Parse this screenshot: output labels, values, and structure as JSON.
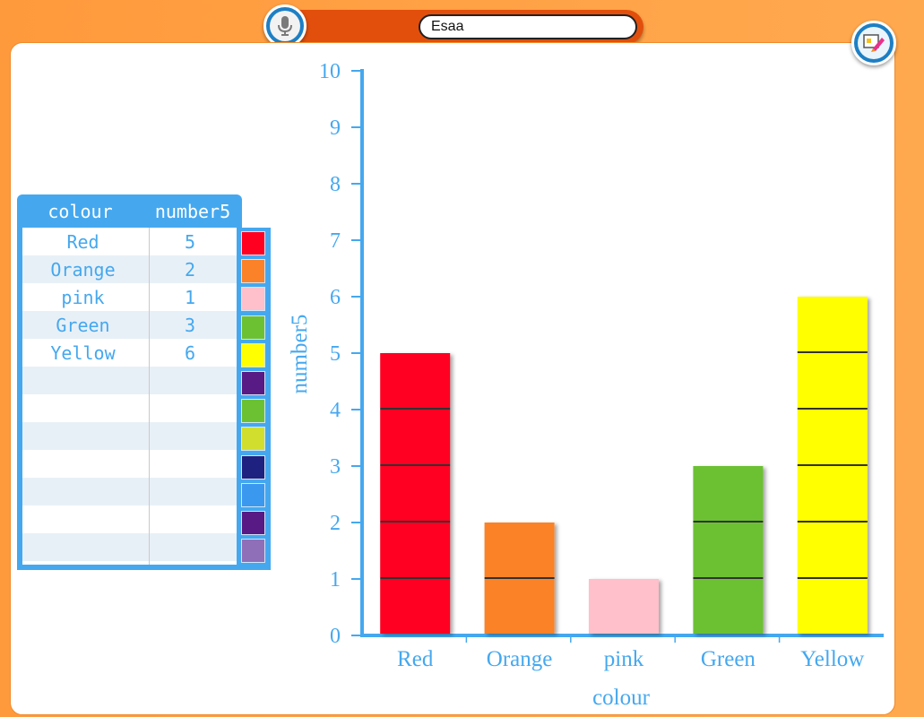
{
  "toolbar": {
    "title_value": "Esaa",
    "mic_icon": "microphone-icon",
    "app_icon": "paint-app-icon"
  },
  "table": {
    "headers": [
      "colour",
      "number5"
    ],
    "rows": [
      {
        "colour": "Red",
        "number": "5"
      },
      {
        "colour": "Orange",
        "number": "2"
      },
      {
        "colour": "pink",
        "number": "1"
      },
      {
        "colour": "Green",
        "number": "3"
      },
      {
        "colour": "Yellow",
        "number": "6"
      },
      {
        "colour": "",
        "number": ""
      },
      {
        "colour": "",
        "number": ""
      },
      {
        "colour": "",
        "number": ""
      },
      {
        "colour": "",
        "number": ""
      },
      {
        "colour": "",
        "number": ""
      },
      {
        "colour": "",
        "number": ""
      },
      {
        "colour": "",
        "number": ""
      }
    ],
    "swatches": [
      "#ff0020",
      "#fb8228",
      "#ffc0cb",
      "#6cc133",
      "#ffff00",
      "#581a84",
      "#6cc133",
      "#d2de2e",
      "#1e2180",
      "#3b98ef",
      "#581a84",
      "#8f6fb8"
    ]
  },
  "chart_data": {
    "type": "bar",
    "categories": [
      "Red",
      "Orange",
      "pink",
      "Green",
      "Yellow"
    ],
    "values": [
      5,
      2,
      1,
      3,
      6
    ],
    "colors": [
      "#ff0020",
      "#fb8228",
      "#ffc0cb",
      "#6cc133",
      "#ffff00"
    ],
    "xlabel": "colour",
    "ylabel": "number5",
    "ylim": [
      0,
      10
    ],
    "yticks": [
      0,
      1,
      2,
      3,
      4,
      5,
      6,
      7,
      8,
      9,
      10
    ],
    "stacked_units": true
  }
}
